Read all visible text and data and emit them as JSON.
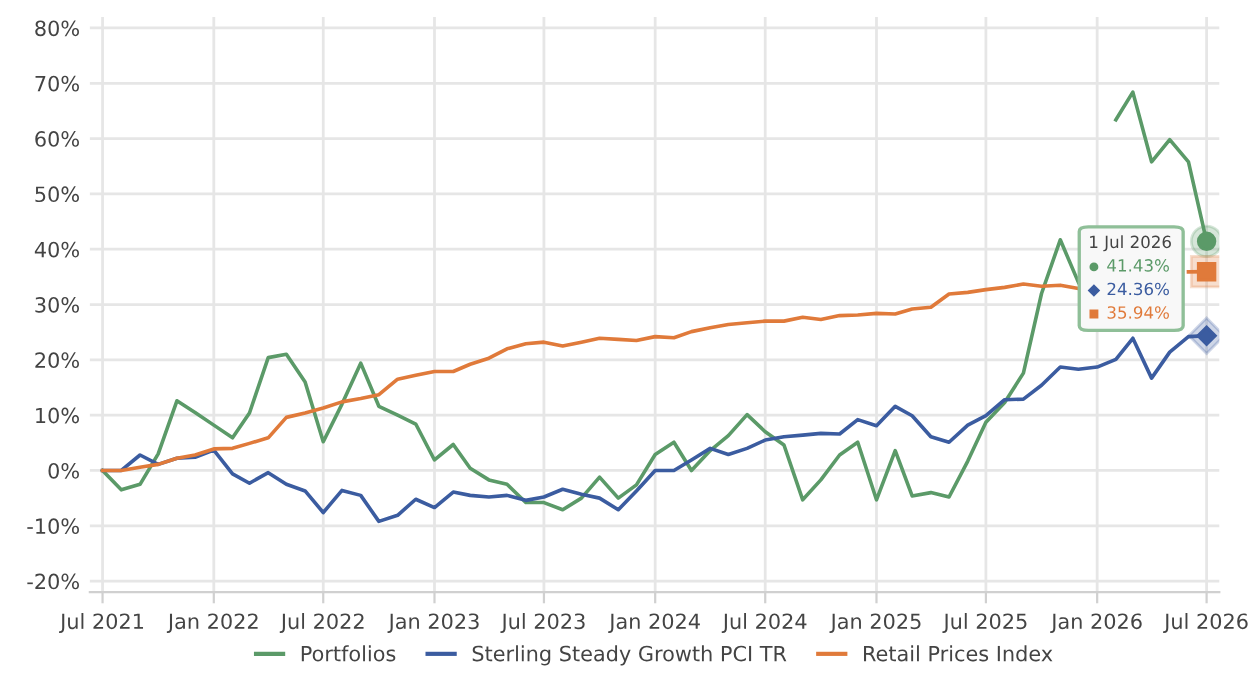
{
  "chart_data": {
    "type": "line",
    "x": [
      "2021-07",
      "2021-08",
      "2021-09",
      "2021-10",
      "2021-11",
      "2021-12",
      "2022-01",
      "2022-02",
      "2022-03",
      "2022-04",
      "2022-05",
      "2022-06",
      "2022-07",
      "2022-08",
      "2022-09",
      "2022-10",
      "2022-11",
      "2022-12",
      "2023-01",
      "2023-02",
      "2023-03",
      "2023-04",
      "2023-05",
      "2023-06",
      "2023-07",
      "2023-08",
      "2023-09",
      "2023-10",
      "2023-11",
      "2023-12",
      "2024-01",
      "2024-02",
      "2024-03",
      "2024-04",
      "2024-05",
      "2024-06",
      "2024-07",
      "2024-08",
      "2024-09",
      "2024-10",
      "2024-11",
      "2024-12",
      "2025-01",
      "2025-02",
      "2025-03",
      "2025-04",
      "2025-05",
      "2025-06",
      "2025-07",
      "2025-08",
      "2025-09",
      "2025-10",
      "2025-11",
      "2025-12",
      "2026-01",
      "2026-02",
      "2026-03",
      "2026-04",
      "2026-05",
      "2026-06",
      "2026-07"
    ],
    "series": [
      {
        "name": "Portfolios",
        "color": "#5b9a68",
        "values": [
          0,
          -3.5,
          -2.5,
          3,
          12.6,
          10.5,
          8.2,
          5.9,
          10.4,
          20.4,
          21,
          16,
          5.2,
          12,
          19.4,
          11.6,
          10,
          8.4,
          1.9,
          4.7,
          0.4,
          -1.7,
          -2.5,
          -5.8,
          -5.8,
          -7.1,
          -5,
          -1.2,
          -5,
          -2.6,
          2.9,
          5.1,
          0,
          3.6,
          6.3,
          10.1,
          7,
          4.6,
          -5.3,
          -1.7,
          2.8,
          5.1,
          -5.3,
          3.6,
          -4.6,
          -4,
          -4.8,
          1.7,
          8.7,
          12.3,
          17.6,
          32,
          41.7,
          34,
          null,
          63.4,
          68.4,
          55.8,
          59.8,
          55.8,
          41.43
        ]
      },
      {
        "name": "Sterling Steady Growth PCI TR",
        "color": "#3b5ca0",
        "values": [
          0,
          0,
          2.8,
          1.1,
          2.2,
          2.4,
          3.7,
          -0.6,
          -2.3,
          -0.4,
          -2.5,
          -3.7,
          -7.6,
          -3.6,
          -4.5,
          -9.2,
          -8.1,
          -5.2,
          -6.7,
          -3.9,
          -4.5,
          -4.8,
          -4.5,
          -5.4,
          -4.8,
          -3.4,
          -4.3,
          -5,
          -7.1,
          -3.7,
          0,
          0,
          1.9,
          4,
          2.9,
          4,
          5.5,
          6.1,
          6.4,
          6.7,
          6.6,
          9.2,
          8.1,
          11.6,
          9.9,
          6.1,
          5.1,
          8.2,
          9.9,
          12.8,
          12.9,
          15.4,
          18.7,
          18.3,
          18.7,
          20.1,
          23.9,
          16.7,
          21.4,
          24.2,
          24.36
        ]
      },
      {
        "name": "Retail Prices Index",
        "color": "#e07a3a",
        "values": [
          0,
          0,
          0.6,
          1.1,
          2.2,
          2.8,
          3.9,
          4,
          4.9,
          5.9,
          9.6,
          10.4,
          11.3,
          12.4,
          13,
          13.7,
          16.5,
          17.2,
          17.9,
          17.9,
          19.2,
          20.3,
          22,
          22.9,
          23.2,
          22.5,
          23.2,
          23.9,
          23.7,
          23.5,
          24.2,
          24,
          25.1,
          25.8,
          26.4,
          26.7,
          27,
          27,
          27.7,
          27.3,
          28,
          28.1,
          28.4,
          28.3,
          29.2,
          29.5,
          31.9,
          32.2,
          32.7,
          33.1,
          33.7,
          33.3,
          33.5,
          32.9,
          null,
          null,
          null,
          null,
          null,
          35.9,
          35.94
        ]
      }
    ],
    "annotations": [
      "1 Jul 2026",
      "41.43%",
      "24.36%",
      "35.94%"
    ],
    "xlim": [
      "2021-06-10",
      "2026-07-22"
    ],
    "xticks": [
      {
        "value": "2021-07",
        "label": "Jul 2021"
      },
      {
        "value": "2022-01",
        "label": "Jan 2022"
      },
      {
        "value": "2022-07",
        "label": "Jul 2022"
      },
      {
        "value": "2023-01",
        "label": "Jan 2023"
      },
      {
        "value": "2023-07",
        "label": "Jul 2023"
      },
      {
        "value": "2024-01",
        "label": "Jan 2024"
      },
      {
        "value": "2024-07",
        "label": "Jul 2024"
      },
      {
        "value": "2025-01",
        "label": "Jan 2025"
      },
      {
        "value": "2025-07",
        "label": "Jul 2025"
      },
      {
        "value": "2026-01",
        "label": "Jan 2026"
      },
      {
        "value": "2026-07",
        "label": "Jul 2026"
      }
    ],
    "ylim": [
      -22,
      82
    ],
    "yticks": [
      {
        "value": -20,
        "label": "-20%"
      },
      {
        "value": -10,
        "label": "-10%"
      },
      {
        "value": 0,
        "label": "0%"
      },
      {
        "value": 10,
        "label": "10%"
      },
      {
        "value": 20,
        "label": "20%"
      },
      {
        "value": 30,
        "label": "30%"
      },
      {
        "value": 40,
        "label": "40%"
      },
      {
        "value": 50,
        "label": "50%"
      },
      {
        "value": 60,
        "label": "60%"
      },
      {
        "value": 70,
        "label": "70%"
      },
      {
        "value": 80,
        "label": "80%"
      }
    ],
    "grid": true,
    "legend": "bottom",
    "line_style": "solid"
  }
}
